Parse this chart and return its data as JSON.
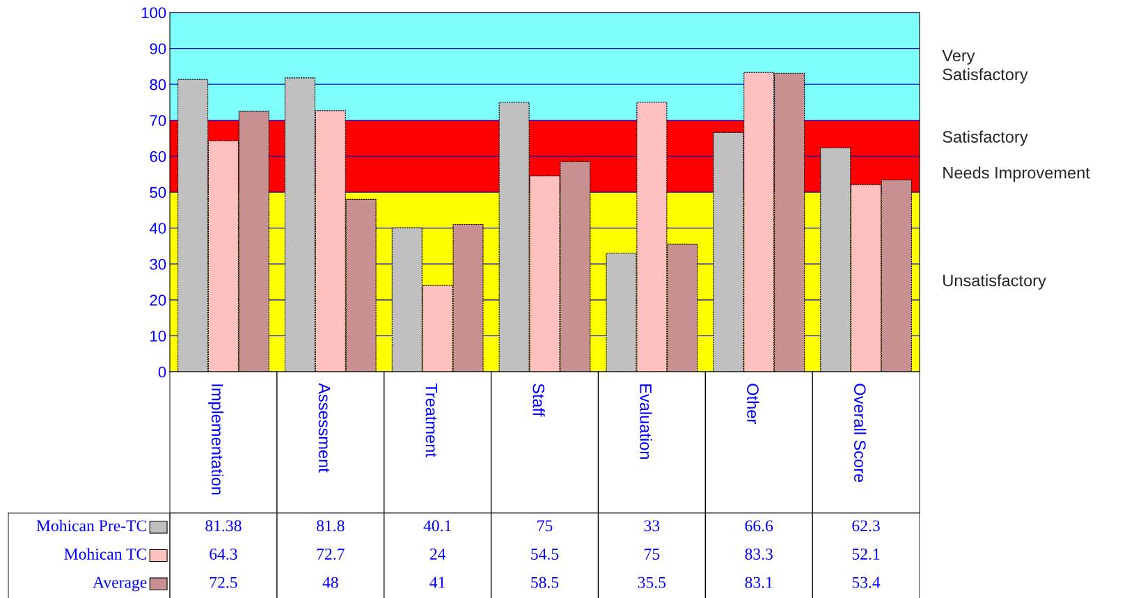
{
  "chart_data": {
    "type": "bar",
    "categories": [
      "Implementation",
      "Assessment",
      "Treatment",
      "Staff",
      "Evaluation",
      "Other",
      "Overall Score"
    ],
    "series": [
      {
        "name": "Mohican Pre-TC",
        "color": "#c0c0c0",
        "values": [
          81.38,
          81.8,
          40.1,
          75,
          33,
          66.6,
          62.3
        ]
      },
      {
        "name": "Mohican TC",
        "color": "#ffc0c0",
        "values": [
          64.3,
          72.7,
          24,
          54.5,
          75,
          83.3,
          52.1
        ]
      },
      {
        "name": "Average",
        "color": "#c89090",
        "values": [
          72.5,
          48,
          41,
          58.5,
          35.5,
          83.1,
          53.4
        ]
      }
    ],
    "ylim": [
      0,
      100
    ],
    "yticks": [
      0,
      10,
      20,
      30,
      40,
      50,
      60,
      70,
      80,
      90,
      100
    ],
    "bands": [
      {
        "axis": "y",
        "from": 0,
        "to": 50,
        "label": "Unsatisfactory",
        "color": "#ffff00"
      },
      {
        "axis": "y",
        "from": 50,
        "to": 60,
        "label": "Needs Improvement",
        "color": "#ff0000"
      },
      {
        "axis": "y",
        "from": 60,
        "to": 70,
        "label": "Satisfactory",
        "color": "#ff0000"
      },
      {
        "axis": "y",
        "from": 70,
        "to": 100,
        "label": "Very\nSatisfactory",
        "color": "#80ffff"
      }
    ],
    "grid": "y",
    "legend": "bottom left",
    "data_labels": true
  }
}
